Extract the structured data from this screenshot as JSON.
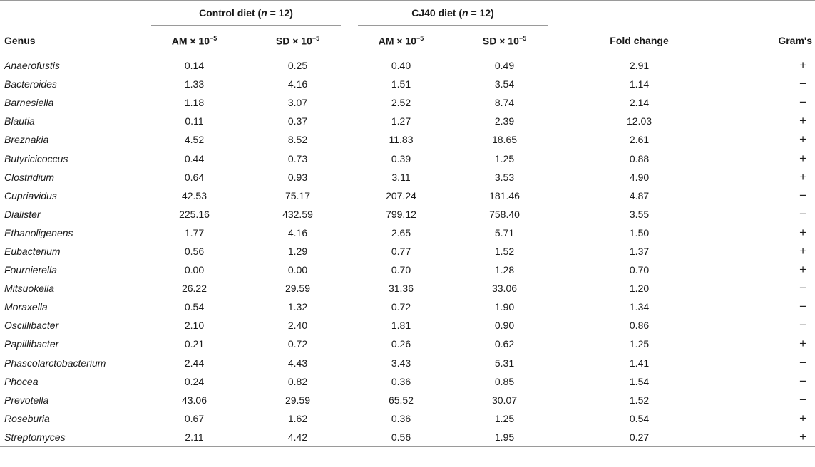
{
  "header": {
    "group_control": {
      "prefix": "Control diet (",
      "n": "n",
      "suffix": " = 12)"
    },
    "group_cj40": {
      "prefix": "CJ40 diet (",
      "n": "n",
      "suffix": " = 12)"
    },
    "col_genus": "Genus",
    "col_am": "AM × 10",
    "col_sd": "SD × 10",
    "exp": "−5",
    "col_fold": "Fold change",
    "col_gram": "Gram's"
  },
  "rows": [
    {
      "genus": "Anaerofustis",
      "am_c": "0.14",
      "sd_c": "0.25",
      "am_cj": "0.40",
      "sd_cj": "0.49",
      "fold": "2.91",
      "gram": "+"
    },
    {
      "genus": "Bacteroides",
      "am_c": "1.33",
      "sd_c": "4.16",
      "am_cj": "1.51",
      "sd_cj": "3.54",
      "fold": "1.14",
      "gram": "−"
    },
    {
      "genus": "Barnesiella",
      "am_c": "1.18",
      "sd_c": "3.07",
      "am_cj": "2.52",
      "sd_cj": "8.74",
      "fold": "2.14",
      "gram": "−"
    },
    {
      "genus": "Blautia",
      "am_c": "0.11",
      "sd_c": "0.37",
      "am_cj": "1.27",
      "sd_cj": "2.39",
      "fold": "12.03",
      "gram": "+"
    },
    {
      "genus": "Breznakia",
      "am_c": "4.52",
      "sd_c": "8.52",
      "am_cj": "11.83",
      "sd_cj": "18.65",
      "fold": "2.61",
      "gram": "+"
    },
    {
      "genus": "Butyricicoccus",
      "am_c": "0.44",
      "sd_c": "0.73",
      "am_cj": "0.39",
      "sd_cj": "1.25",
      "fold": "0.88",
      "gram": "+"
    },
    {
      "genus": "Clostridium",
      "am_c": "0.64",
      "sd_c": "0.93",
      "am_cj": "3.11",
      "sd_cj": "3.53",
      "fold": "4.90",
      "gram": "+"
    },
    {
      "genus": "Cupriavidus",
      "am_c": "42.53",
      "sd_c": "75.17",
      "am_cj": "207.24",
      "sd_cj": "181.46",
      "fold": "4.87",
      "gram": "−"
    },
    {
      "genus": "Dialister",
      "am_c": "225.16",
      "sd_c": "432.59",
      "am_cj": "799.12",
      "sd_cj": "758.40",
      "fold": "3.55",
      "gram": "−"
    },
    {
      "genus": "Ethanoligenens",
      "am_c": "1.77",
      "sd_c": "4.16",
      "am_cj": "2.65",
      "sd_cj": "5.71",
      "fold": "1.50",
      "gram": "+"
    },
    {
      "genus": "Eubacterium",
      "am_c": "0.56",
      "sd_c": "1.29",
      "am_cj": "0.77",
      "sd_cj": "1.52",
      "fold": "1.37",
      "gram": "+"
    },
    {
      "genus": "Fournierella",
      "am_c": "0.00",
      "sd_c": "0.00",
      "am_cj": "0.70",
      "sd_cj": "1.28",
      "fold": "0.70",
      "gram": "+"
    },
    {
      "genus": "Mitsuokella",
      "am_c": "26.22",
      "sd_c": "29.59",
      "am_cj": "31.36",
      "sd_cj": "33.06",
      "fold": "1.20",
      "gram": "−"
    },
    {
      "genus": "Moraxella",
      "am_c": "0.54",
      "sd_c": "1.32",
      "am_cj": "0.72",
      "sd_cj": "1.90",
      "fold": "1.34",
      "gram": "−"
    },
    {
      "genus": "Oscillibacter",
      "am_c": "2.10",
      "sd_c": "2.40",
      "am_cj": "1.81",
      "sd_cj": "0.90",
      "fold": "0.86",
      "gram": "−"
    },
    {
      "genus": "Papillibacter",
      "am_c": "0.21",
      "sd_c": "0.72",
      "am_cj": "0.26",
      "sd_cj": "0.62",
      "fold": "1.25",
      "gram": "+"
    },
    {
      "genus": "Phascolarctobacterium",
      "am_c": "2.44",
      "sd_c": "4.43",
      "am_cj": "3.43",
      "sd_cj": "5.31",
      "fold": "1.41",
      "gram": "−"
    },
    {
      "genus": "Phocea",
      "am_c": "0.24",
      "sd_c": "0.82",
      "am_cj": "0.36",
      "sd_cj": "0.85",
      "fold": "1.54",
      "gram": "−"
    },
    {
      "genus": "Prevotella",
      "am_c": "43.06",
      "sd_c": "29.59",
      "am_cj": "65.52",
      "sd_cj": "30.07",
      "fold": "1.52",
      "gram": "−"
    },
    {
      "genus": "Roseburia",
      "am_c": "0.67",
      "sd_c": "1.62",
      "am_cj": "0.36",
      "sd_cj": "1.25",
      "fold": "0.54",
      "gram": "+"
    },
    {
      "genus": "Streptomyces",
      "am_c": "2.11",
      "sd_c": "4.42",
      "am_cj": "0.56",
      "sd_cj": "1.95",
      "fold": "0.27",
      "gram": "+"
    }
  ]
}
